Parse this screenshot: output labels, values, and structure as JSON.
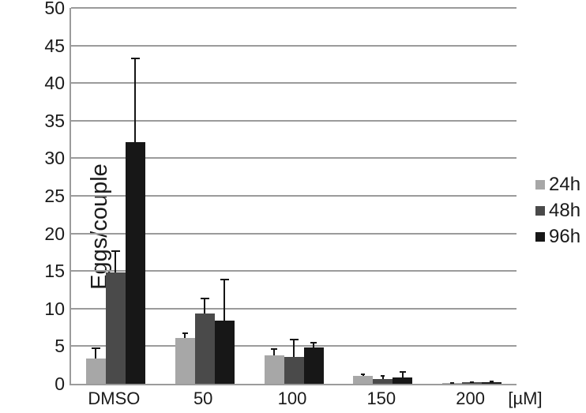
{
  "chart_data": {
    "type": "bar",
    "title": "",
    "ylabel": "Eggs/couple",
    "xlabel": "",
    "x_unit_label": "[µM]",
    "categories": [
      "DMSO",
      "50",
      "100",
      "150",
      "200"
    ],
    "series": [
      {
        "name": "24h",
        "color": "#a7a7a7",
        "values": [
          3.4,
          6.1,
          3.8,
          1.0,
          0.1
        ],
        "errors_plus": [
          1.4,
          0.7,
          0.9,
          0.4,
          0.1
        ]
      },
      {
        "name": "48h",
        "color": "#4a4a4a",
        "values": [
          14.8,
          9.4,
          3.6,
          0.65,
          0.25
        ],
        "errors_plus": [
          2.9,
          2.1,
          2.4,
          0.5,
          0.1
        ]
      },
      {
        "name": "96h",
        "color": "#171717",
        "values": [
          32.1,
          8.4,
          4.8,
          0.8,
          0.25
        ],
        "errors_plus": [
          11.3,
          5.6,
          0.8,
          0.9,
          0.15
        ]
      }
    ],
    "yticks": [
      0,
      5,
      10,
      15,
      20,
      25,
      30,
      35,
      40,
      45,
      50
    ],
    "ylim": [
      0,
      50
    ],
    "grid": true,
    "grid_color": "#9b9b9b",
    "error_bar_color": "#151515",
    "legend_position": "right",
    "legend_entries": [
      "24h",
      "48h",
      "96h"
    ]
  }
}
